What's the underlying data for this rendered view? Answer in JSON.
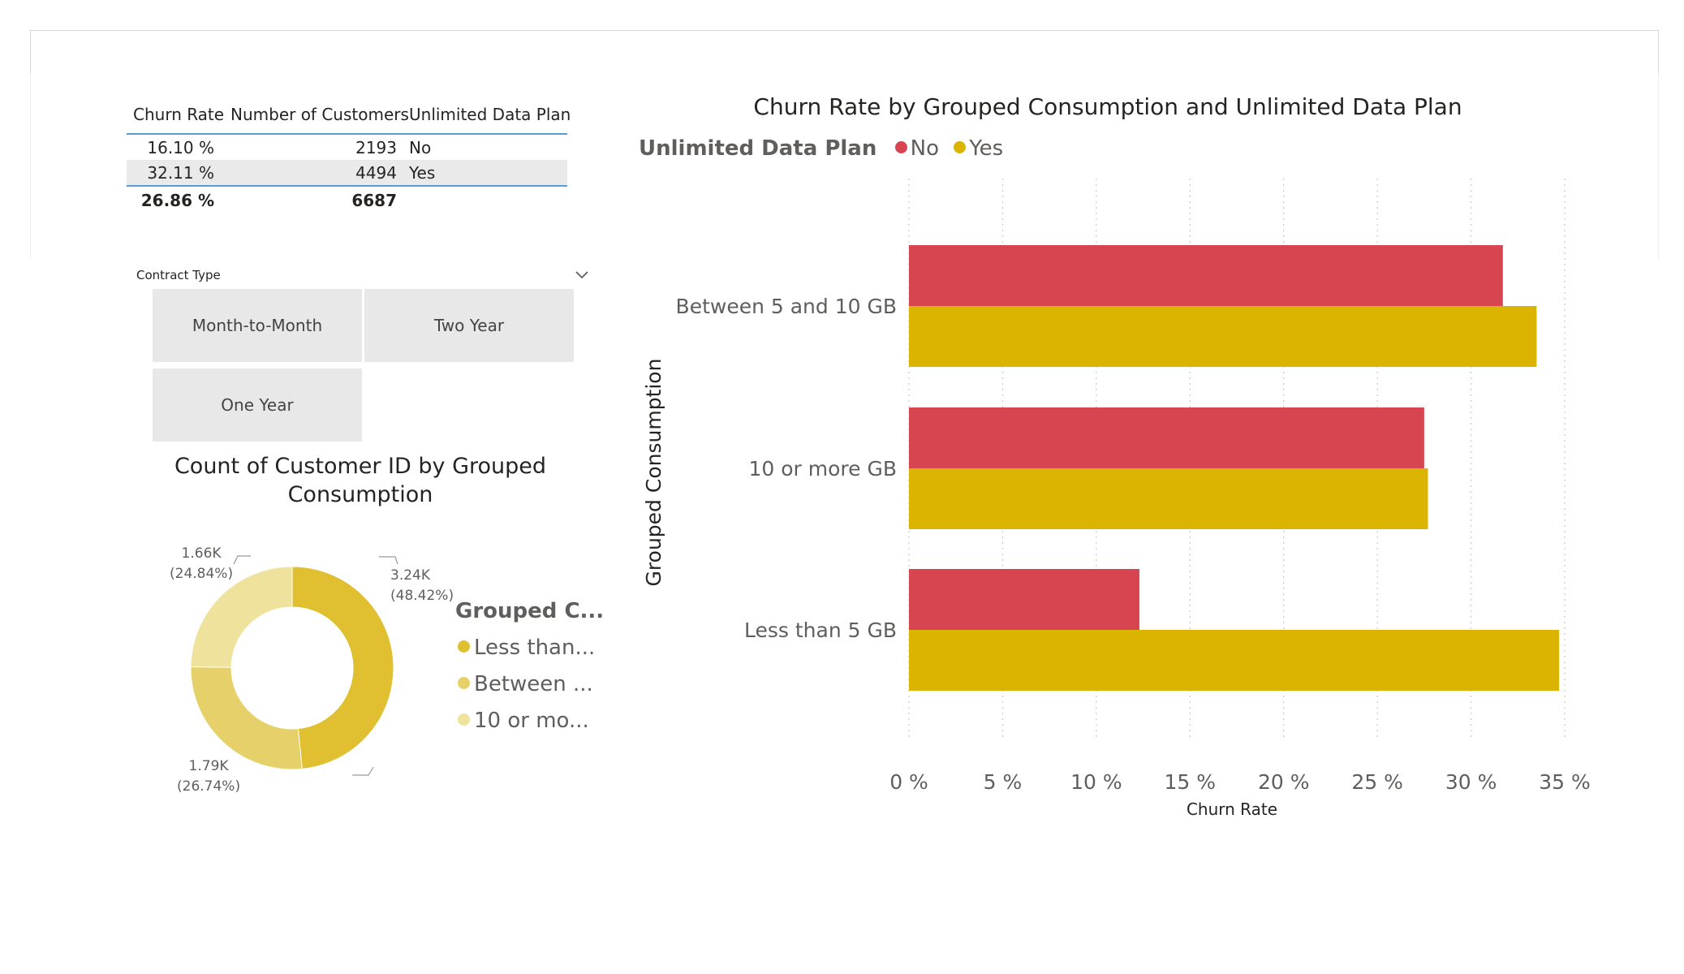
{
  "table": {
    "headers": [
      "Churn Rate",
      "Number of Customers",
      "Unlimited Data Plan"
    ],
    "rows": [
      {
        "churn_rate": "16.10 %",
        "customers": "2193",
        "plan": "No"
      },
      {
        "churn_rate": "32.11 %",
        "customers": "4494",
        "plan": "Yes"
      }
    ],
    "total": {
      "churn_rate": "26.86 %",
      "customers": "6687"
    }
  },
  "slicer": {
    "title": "Contract Type",
    "options": [
      "Month-to-Month",
      "Two Year",
      "One Year"
    ]
  },
  "donut": {
    "title_line1": "Count of Customer ID by Grouped",
    "title_line2": "Consumption",
    "legend_title": "Grouped C...",
    "legend_items": [
      "Less than...",
      "Between ...",
      "10 or mo..."
    ],
    "labels": [
      {
        "value": "3.24K",
        "pct": "(48.42%)"
      },
      {
        "value": "1.79K",
        "pct": "(26.74%)"
      },
      {
        "value": "1.66K",
        "pct": "(24.84%)"
      }
    ],
    "colors": [
      "#e0c030",
      "#e5d06a",
      "#efe29c"
    ]
  },
  "bar_chart_header": {
    "title": "Churn Rate by Grouped Consumption and Unlimited Data Plan",
    "legend_title": "Unlimited Data Plan",
    "legend_items": [
      "No",
      "Yes"
    ],
    "colors": [
      "#d64550",
      "#dab400"
    ]
  },
  "chart_data": [
    {
      "type": "bar",
      "orientation": "horizontal",
      "title": "Churn Rate by Grouped Consumption and Unlimited Data Plan",
      "categories": [
        "Between 5 and 10 GB",
        "10 or more GB",
        "Less than 5 GB"
      ],
      "series": [
        {
          "name": "No",
          "values": [
            31.7,
            27.5,
            12.3
          ]
        },
        {
          "name": "Yes",
          "values": [
            33.5,
            27.7,
            34.7
          ]
        }
      ],
      "xlabel": "Churn Rate",
      "ylabel": "Grouped Consumption",
      "xlim": [
        0,
        35
      ],
      "ticks": [
        "0 %",
        "5 %",
        "10 %",
        "15 %",
        "20 %",
        "25 %",
        "30 %",
        "35 %"
      ],
      "legend": "top-left",
      "grid": true
    },
    {
      "type": "pie",
      "title": "Count of Customer ID by Grouped Consumption",
      "categories": [
        "Less than...",
        "Between ...",
        "10 or mo..."
      ],
      "values": [
        3240,
        1790,
        1660
      ],
      "percentages": [
        48.42,
        26.74,
        24.84
      ]
    }
  ]
}
